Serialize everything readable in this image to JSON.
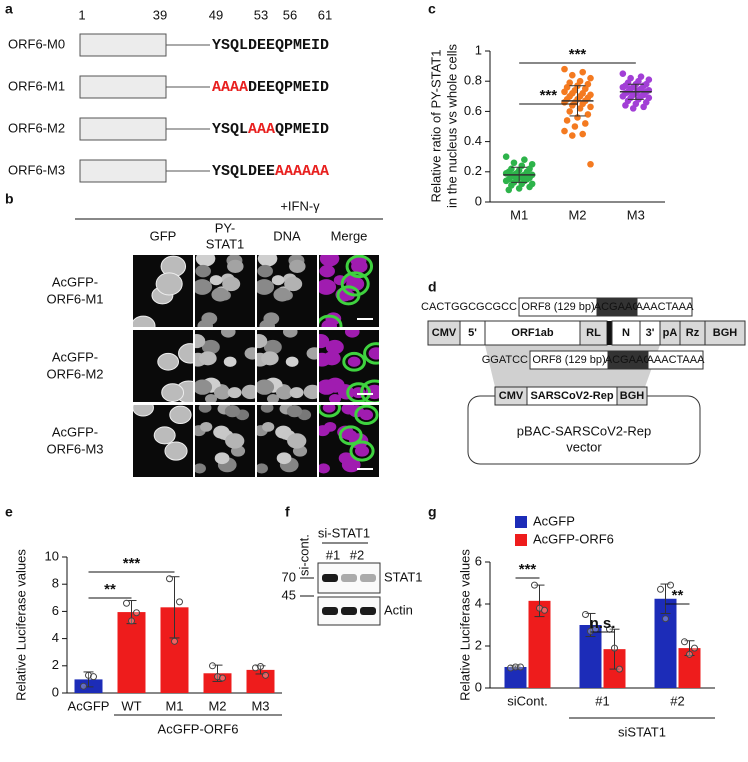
{
  "panels": {
    "a": {
      "label": "a",
      "positions": [
        "1",
        "39",
        "49",
        "53",
        "56",
        "61"
      ],
      "mutation_color": "#e8201f",
      "rows": [
        {
          "name": "ORF6-M0",
          "segments": [
            {
              "text": "YSQLDEEQPMEID",
              "mutated": false
            }
          ]
        },
        {
          "name": "ORF6-M1",
          "segments": [
            {
              "text": "AAAA",
              "mutated": true
            },
            {
              "text": "DEEQPMEID",
              "mutated": false
            }
          ]
        },
        {
          "name": "ORF6-M2",
          "segments": [
            {
              "text": "YSQL",
              "mutated": false
            },
            {
              "text": "AAA",
              "mutated": true
            },
            {
              "text": "QPMEID",
              "mutated": false
            }
          ]
        },
        {
          "name": "ORF6-M3",
          "segments": [
            {
              "text": "YSQLDEE",
              "mutated": false
            },
            {
              "text": "AAAAAA",
              "mutated": true
            }
          ]
        }
      ]
    },
    "b": {
      "label": "b",
      "condition": "+IFN-γ",
      "columns": [
        [
          "GFP"
        ],
        [
          "PY-",
          "STAT1"
        ],
        [
          "DNA"
        ],
        [
          "Merge"
        ]
      ],
      "rows": [
        [
          "AcGFP-",
          "ORF6-M1"
        ],
        [
          "AcGFP-",
          "ORF6-M2"
        ],
        [
          "AcGFP-",
          "ORF6-M3"
        ]
      ]
    },
    "d": {
      "label": "d",
      "top_insert": {
        "prefix": "CACTGGCGCGCC",
        "orf": "ORF8 (129 bp)",
        "trs": "ACGAAC",
        "suffix": "AAACTAAA"
      },
      "construct": [
        "CMV",
        "5'",
        "ORF1ab",
        "RL",
        "N",
        "3'",
        "pA",
        "Rz",
        "BGH"
      ],
      "bottom_insert": {
        "prefix": "GGATCC",
        "orf": "ORF8 (129 bp)",
        "trs": "ACGAAC",
        "suffix": "AAACTAAA"
      },
      "vector": {
        "elements": [
          "CMV",
          "SARSCoV2-Rep",
          "BGH"
        ],
        "name": [
          "pBAC-SARSCoV2-Rep",
          "vector"
        ]
      }
    },
    "f": {
      "label": "f",
      "lane": "si-cont.",
      "group": "si-STAT1",
      "group_lanes": [
        "#1",
        "#2"
      ],
      "markers": [
        "70",
        "45"
      ],
      "bands": [
        "STAT1",
        "Actin"
      ]
    }
  },
  "chart_data": [
    {
      "type": "strip",
      "label": "c",
      "categories": [
        "M1",
        "M2",
        "M3"
      ],
      "colors": [
        "#2db34a",
        "#f47a20",
        "#a23fd6"
      ],
      "ylabel": [
        "Relative ratio of PY-STAT1",
        "in the nucleus vs whole cells"
      ],
      "ylim": [
        0,
        1
      ],
      "yticks": [
        0,
        0.2,
        0.4,
        0.6,
        0.8,
        1
      ],
      "points": [
        [
          0.3,
          0.28,
          0.26,
          0.25,
          0.24,
          0.22,
          0.22,
          0.21,
          0.2,
          0.2,
          0.19,
          0.19,
          0.18,
          0.18,
          0.18,
          0.17,
          0.17,
          0.16,
          0.16,
          0.15,
          0.15,
          0.15,
          0.14,
          0.14,
          0.13,
          0.12,
          0.12,
          0.11,
          0.1,
          0.09,
          0.08
        ],
        [
          0.88,
          0.86,
          0.84,
          0.82,
          0.8,
          0.79,
          0.78,
          0.77,
          0.76,
          0.75,
          0.74,
          0.73,
          0.72,
          0.72,
          0.71,
          0.7,
          0.7,
          0.69,
          0.68,
          0.68,
          0.67,
          0.66,
          0.66,
          0.65,
          0.64,
          0.63,
          0.62,
          0.6,
          0.58,
          0.56,
          0.54,
          0.52,
          0.5,
          0.47,
          0.45,
          0.44,
          0.25
        ],
        [
          0.85,
          0.83,
          0.82,
          0.81,
          0.8,
          0.79,
          0.78,
          0.78,
          0.77,
          0.77,
          0.76,
          0.76,
          0.75,
          0.75,
          0.74,
          0.74,
          0.73,
          0.73,
          0.72,
          0.72,
          0.71,
          0.71,
          0.7,
          0.7,
          0.69,
          0.69,
          0.68,
          0.67,
          0.66,
          0.65,
          0.64,
          0.63,
          0.62
        ]
      ],
      "mean": [
        0.18,
        0.67,
        0.73
      ],
      "sd": [
        0.05,
        0.1,
        0.05
      ],
      "annotations": [
        "***",
        "***"
      ]
    },
    {
      "type": "bar",
      "label": "e",
      "categories": [
        "AcGFP",
        "WT",
        "M1",
        "M2",
        "M3"
      ],
      "values": [
        1.0,
        5.95,
        6.3,
        1.45,
        1.7
      ],
      "errors": [
        0.55,
        0.85,
        2.25,
        0.6,
        0.3
      ],
      "points": [
        [
          0.5,
          1.3,
          1.2
        ],
        [
          6.6,
          5.3,
          5.9
        ],
        [
          8.4,
          3.8,
          6.7
        ],
        [
          2.0,
          1.2,
          1.1
        ],
        [
          1.85,
          1.95,
          1.3
        ]
      ],
      "colors": [
        "#1c2cb8",
        "#ee1c1c",
        "#ee1c1c",
        "#ee1c1c",
        "#ee1c1c"
      ],
      "ylabel": [
        "Relative Luciferase values"
      ],
      "ylim": [
        0,
        10
      ],
      "yticks": [
        0,
        2,
        4,
        6,
        8,
        10
      ],
      "group_label": "AcGFP-ORF6",
      "annotations": [
        "**",
        "***"
      ]
    },
    {
      "type": "grouped_bar",
      "label": "g",
      "categories": [
        "siCont.",
        "#1",
        "#2"
      ],
      "series": [
        {
          "name": "AcGFP",
          "color": "#1c2cb8",
          "values": [
            1.0,
            3.0,
            4.25
          ],
          "errors": [
            0.05,
            0.55,
            0.7
          ],
          "points": [
            [
              0.95,
              1.0,
              1.0
            ],
            [
              3.5,
              2.7,
              2.8
            ],
            [
              4.7,
              3.3,
              4.9
            ]
          ]
        },
        {
          "name": "AcGFP-ORF6",
          "color": "#ee1c1c",
          "values": [
            4.15,
            1.85,
            1.9
          ],
          "errors": [
            0.75,
            0.95,
            0.35
          ],
          "points": [
            [
              4.9,
              3.8,
              3.7
            ],
            [
              2.8,
              1.9,
              0.9
            ],
            [
              2.2,
              1.6,
              1.9
            ]
          ]
        }
      ],
      "ylabel": [
        "Relative Luciferase values"
      ],
      "ylim": [
        0,
        6
      ],
      "yticks": [
        0,
        2,
        4,
        6
      ],
      "legend": "top-left",
      "group_label": "siSTAT1",
      "annotations": [
        "***",
        "n.s.",
        "**"
      ]
    }
  ]
}
